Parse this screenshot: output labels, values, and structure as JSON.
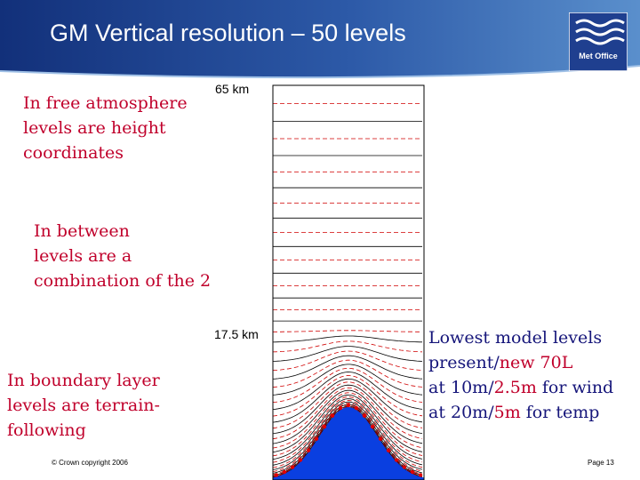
{
  "slide": {
    "title": "GM Vertical resolution – 50 levels",
    "logo_text": "Met Office",
    "text_free": [
      "In free atmosphere",
      "levels are height",
      "coordinates"
    ],
    "text_between": [
      "In between",
      "levels are a",
      "combination of the 2"
    ],
    "text_boundary": [
      "In boundary layer",
      "levels are terrain-",
      "following"
    ],
    "lowest": {
      "line1": "Lowest model levels",
      "line2_a": "present/",
      "line2_b": "new 70L",
      "line3_a": "at 10m/",
      "line3_b": "2.5m",
      "line3_c": " for wind",
      "line4_a": "at 20m/",
      "line4_b": "5m",
      "line4_c": " for temp"
    },
    "label_top": "65 km",
    "label_mid": "17.5 km",
    "copyright": "© Crown copyright 2006",
    "page": "Page 13"
  },
  "colors": {
    "header_dark": "#17387f",
    "header_light": "#4e84c4",
    "text_red": "#c0002b",
    "text_blue": "#15157a",
    "mountain": "#0a3fe0",
    "dot": "#e00000"
  },
  "levels": {
    "count": 50,
    "top_km": 65,
    "flat_below_km": 17.5
  }
}
